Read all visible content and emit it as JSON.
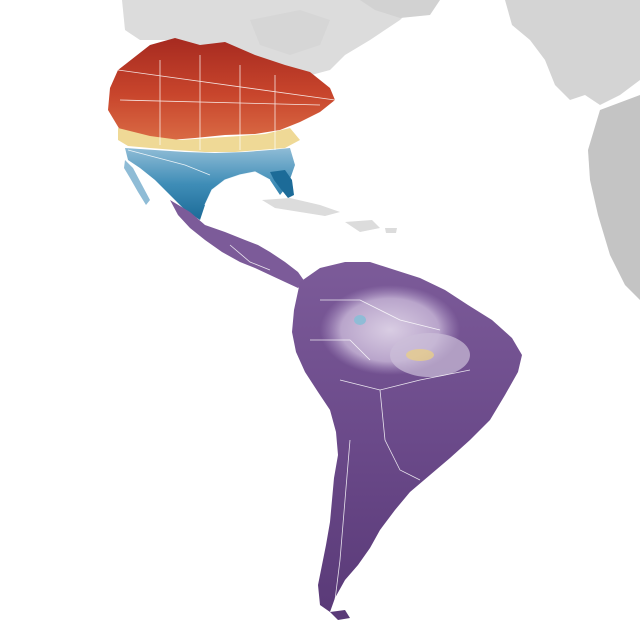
{
  "map": {
    "background": "#ffffff",
    "land_color": "#dcdcdc",
    "land_dark_color": "#c8c8c8",
    "border_color": "#ffffff",
    "abundance_palettes": {
      "breeding": [
        "#f3dfa2",
        "#e38a5a",
        "#c8452c",
        "#a62a20"
      ],
      "nonbreeding": [
        "#cfe3ee",
        "#8fbcd6",
        "#3f8db7",
        "#1c6b98"
      ],
      "year_round": [
        "#d9cde3",
        "#a48bbd",
        "#7c5b99",
        "#5a3a78"
      ],
      "migration": [
        "#f1dfa8",
        "#e9cf86"
      ]
    }
  }
}
